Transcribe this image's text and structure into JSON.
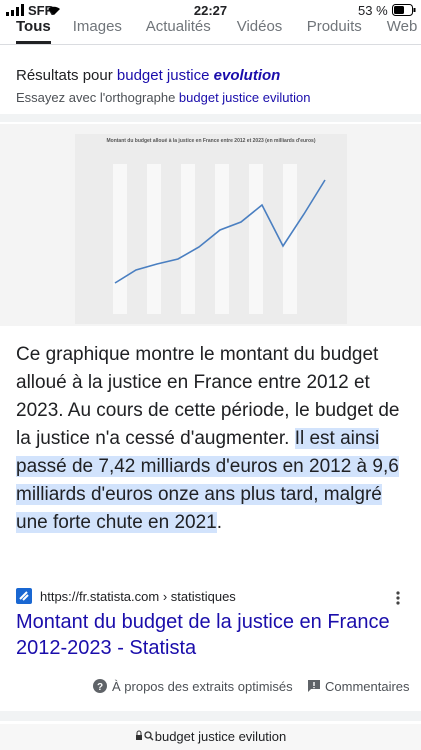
{
  "status": {
    "carrier": "SFR",
    "time": "22:27",
    "battery": "53 %"
  },
  "tabs": [
    "Tous",
    "Images",
    "Actualités",
    "Vidéos",
    "Produits",
    "Web"
  ],
  "spelling": {
    "prefix": "Résultats pour",
    "query": "budget justice",
    "query_emph": "evolution",
    "suggest_prefix": "Essayez avec l'orthographe",
    "suggestion": "budget justice evilution"
  },
  "snippet": {
    "image_title": "Montant du budget alloué à la justice en France entre 2012 et 2023 (en milliards d'euros)",
    "text": "Ce graphique montre le montant du budget alloué à la justice en France entre 2012 et 2023. Au cours de cette période, le budget de la justice n'a cessé d'augmenter. ",
    "highlight": "Il est ainsi passé de 7,42 milliards d'euros en 2012 à 9,6 milliards d'euros onze ans plus tard, malgré une forte chute en 2021",
    "end": "."
  },
  "source": {
    "url": "https://fr.statista.com › statistiques",
    "title": "Montant du budget de la justice en France 2012-2023 - Statista"
  },
  "footer": {
    "about": "À propos des extraits optimisés",
    "feedback": "Commentaires"
  },
  "address_bar": "budget justice evilution"
}
